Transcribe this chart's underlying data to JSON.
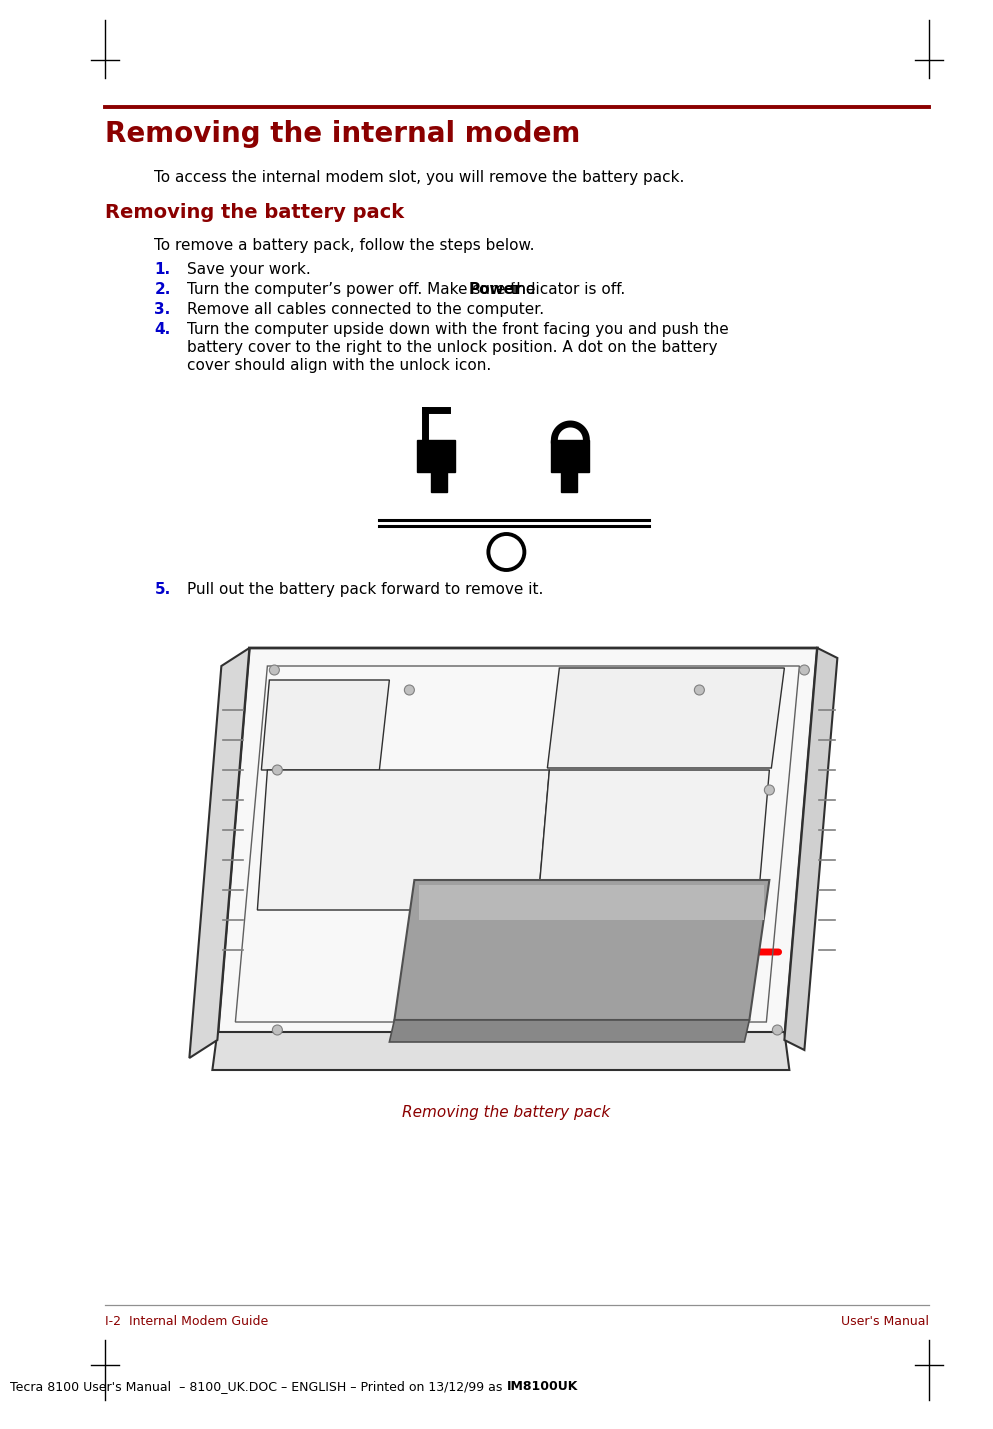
{
  "title": "Removing the internal modem",
  "section2_title": "Removing the battery pack",
  "intro_text": "To access the internal modem slot, you will remove the battery pack.",
  "steps_intro": "To remove a battery pack, follow the steps below.",
  "step1": "Save your work.",
  "step2_pre": "Turn the computer’s power off. Make sure the ",
  "step2_bold": "Power",
  "step2_post": " indicator is off.",
  "step3": "Remove all cables connected to the computer.",
  "step4_line1": "Turn the computer upside down with the front facing you and push the",
  "step4_line2": "battery cover to the right to the unlock position. A dot on the battery",
  "step4_line3": "cover should align with the unlock icon.",
  "step5": "Pull out the battery pack forward to remove it.",
  "caption": "Removing the battery pack",
  "footer_left": "I-2  Internal Modem Guide",
  "footer_right": "User's Manual",
  "footer_bottom_pre": "Tecra 8100 User's Manual  – 8100_UK.DOC – ENGLISH – Printed on 13/12/99 as ",
  "footer_bottom_bold": "IM8100UK",
  "bg_color": "#ffffff",
  "text_color": "#000000",
  "dark_red": "#8B0000",
  "blue_color": "#0000CC",
  "line_color": "#303030",
  "gray_battery": "#a0a0a0",
  "gray_light": "#d8d8d8"
}
